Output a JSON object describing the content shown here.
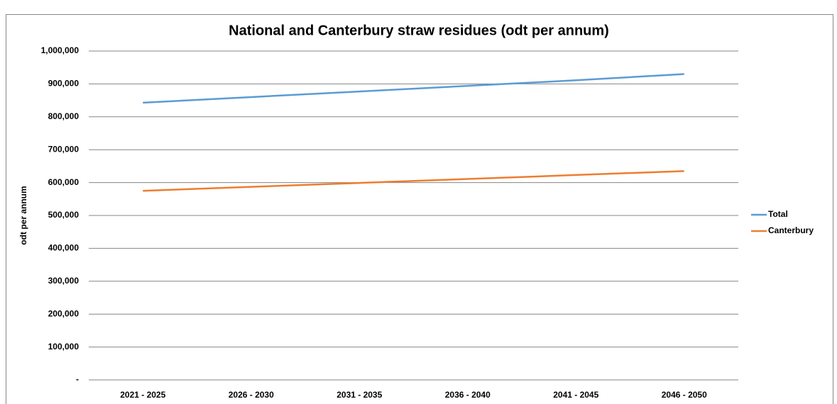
{
  "chart_data": {
    "type": "line",
    "title": "National and Canterbury straw residues (odt per annum)",
    "y_label": "odt per annum",
    "categories": [
      "2021 - 2025",
      "2026 - 2030",
      "2031 - 2035",
      "2036 - 2040",
      "2041 - 2045",
      "2046 - 2050"
    ],
    "series": [
      {
        "name": "Total",
        "color": "#5b9bd5",
        "values": [
          843000,
          860000,
          877000,
          894000,
          911000,
          930000
        ]
      },
      {
        "name": "Canterbury",
        "color": "#ed7d31",
        "values": [
          575000,
          587000,
          599000,
          611000,
          623000,
          635000
        ]
      }
    ],
    "ylim": [
      0,
      1000000
    ],
    "yticks": [
      {
        "value": 0,
        "label": "-"
      },
      {
        "value": 100000,
        "label": "100,000"
      },
      {
        "value": 200000,
        "label": "200,000"
      },
      {
        "value": 300000,
        "label": "300,000"
      },
      {
        "value": 400000,
        "label": "400,000"
      },
      {
        "value": 500000,
        "label": "500,000"
      },
      {
        "value": 600000,
        "label": "600,000"
      },
      {
        "value": 700000,
        "label": "700,000"
      },
      {
        "value": 800000,
        "label": "800,000"
      },
      {
        "value": 900000,
        "label": "900,000"
      },
      {
        "value": 1000000,
        "label": "1,000,000"
      }
    ],
    "grid": true,
    "legend": "right"
  }
}
